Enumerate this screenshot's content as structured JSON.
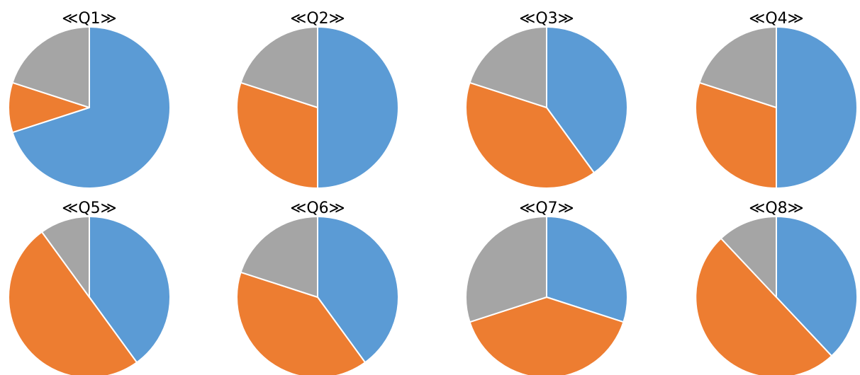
{
  "colors": {
    "blue": "#5B9BD5",
    "orange": "#ED7D31",
    "gray": "#A5A5A5"
  },
  "chart_data": [
    {
      "type": "pie",
      "title": "≪Q1≫",
      "values": [
        70,
        10,
        20
      ],
      "colors": [
        "#5B9BD5",
        "#ED7D31",
        "#A5A5A5"
      ]
    },
    {
      "type": "pie",
      "title": "≪Q2≫",
      "values": [
        50,
        30,
        20
      ],
      "colors": [
        "#5B9BD5",
        "#ED7D31",
        "#A5A5A5"
      ]
    },
    {
      "type": "pie",
      "title": "≪Q3≫",
      "values": [
        40,
        40,
        20
      ],
      "colors": [
        "#5B9BD5",
        "#ED7D31",
        "#A5A5A5"
      ]
    },
    {
      "type": "pie",
      "title": "≪Q4≫",
      "values": [
        50,
        30,
        20
      ],
      "colors": [
        "#5B9BD5",
        "#ED7D31",
        "#A5A5A5"
      ]
    },
    {
      "type": "pie",
      "title": "≪Q5≫",
      "values": [
        40,
        50,
        10
      ],
      "colors": [
        "#5B9BD5",
        "#ED7D31",
        "#A5A5A5"
      ]
    },
    {
      "type": "pie",
      "title": "≪Q6≫",
      "values": [
        40,
        40,
        20
      ],
      "colors": [
        "#5B9BD5",
        "#ED7D31",
        "#A5A5A5"
      ]
    },
    {
      "type": "pie",
      "title": "≪Q7≫",
      "values": [
        30,
        40,
        30
      ],
      "colors": [
        "#5B9BD5",
        "#ED7D31",
        "#A5A5A5"
      ]
    },
    {
      "type": "pie",
      "title": "≪Q8≫",
      "values": [
        38,
        50,
        12
      ],
      "colors": [
        "#5B9BD5",
        "#ED7D31",
        "#A5A5A5"
      ]
    }
  ]
}
